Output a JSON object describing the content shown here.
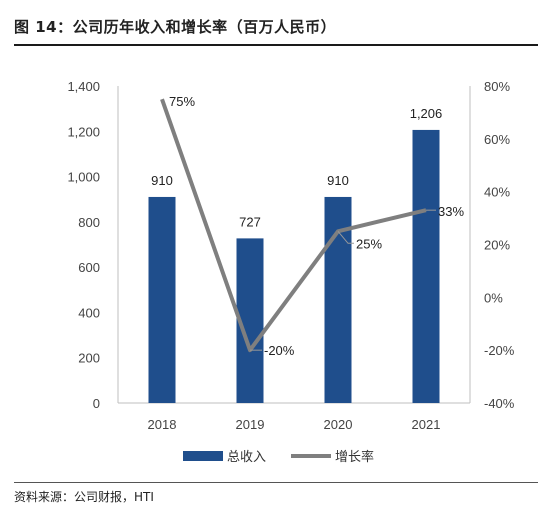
{
  "header": {
    "title": "图 14：公司历年收入和增长率（百万人民币）"
  },
  "footer": {
    "source": "资料来源：公司财报，HTI"
  },
  "colors": {
    "bar": "#1f4e8c",
    "line": "#7f7f7f",
    "axis": "#bfbfbf"
  },
  "chart_data": {
    "type": "bar",
    "categories": [
      "2018",
      "2019",
      "2020",
      "2021"
    ],
    "series": [
      {
        "name": "总收入",
        "type": "bar",
        "axis": "left",
        "values": [
          910,
          727,
          910,
          1206
        ],
        "labels": [
          "910",
          "727",
          "910",
          "1,206"
        ]
      },
      {
        "name": "增长率",
        "type": "line",
        "axis": "right",
        "values": [
          75,
          -20,
          25,
          33
        ],
        "labels": [
          "75%",
          "-20%",
          "25%",
          "33%"
        ]
      }
    ],
    "y_left": {
      "min": 0,
      "max": 1400,
      "step": 200,
      "tick_labels": [
        "0",
        "200",
        "400",
        "600",
        "800",
        "1,000",
        "1,200",
        "1,400"
      ]
    },
    "y_right": {
      "min": -40,
      "max": 80,
      "step": 20,
      "tick_labels": [
        "-40%",
        "-20%",
        "0%",
        "20%",
        "40%",
        "60%",
        "80%"
      ]
    },
    "grid": false,
    "legend": "bottom"
  }
}
